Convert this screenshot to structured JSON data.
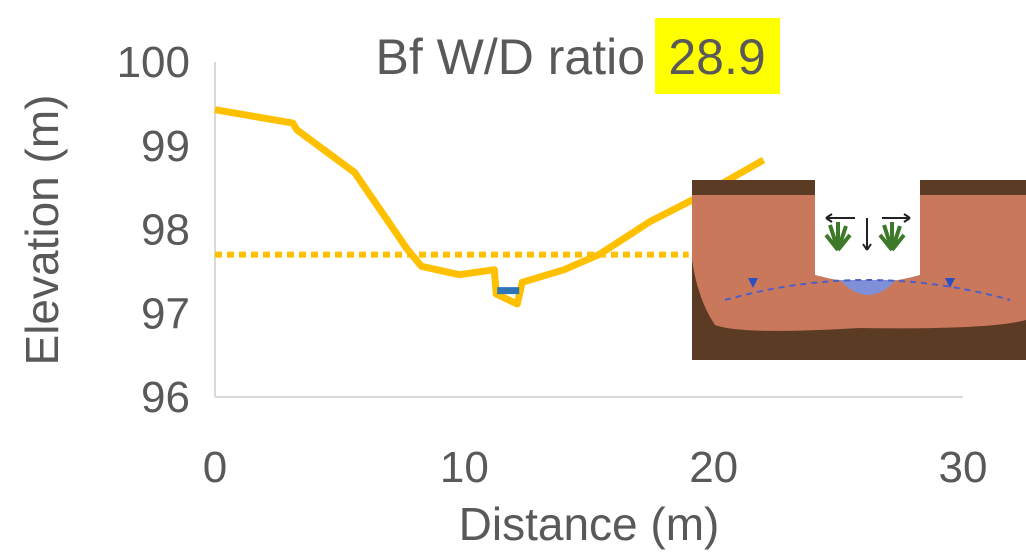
{
  "chart_data": {
    "type": "line",
    "title": "Bf W/D ratio",
    "ratio_value": 28.9,
    "x_label": "Distance (m)",
    "y_label": "Elevation (m)",
    "xlim": [
      0,
      30
    ],
    "xticks": [
      0,
      10,
      20,
      30
    ],
    "ylim": [
      96,
      100
    ],
    "yticks": [
      96,
      97,
      98,
      99,
      100
    ],
    "grid": false,
    "series": [
      {
        "color": "#ffc000",
        "dash": false,
        "x": [
          0,
          3.12,
          3.28,
          5.6,
          7.72,
          8.28,
          9.8,
          11.2,
          11.28,
          12.12,
          12.32,
          14,
          15.4,
          17.48,
          19.4,
          22
        ],
        "values": [
          99.43,
          99.27,
          99.19,
          98.68,
          97.76,
          97.56,
          97.46,
          97.52,
          97.23,
          97.11,
          97.37,
          97.52,
          97.7,
          98.1,
          98.39,
          98.83
        ]
      },
      {
        "color": "#ffc000",
        "dash": true,
        "x": [
          0,
          19
        ],
        "values": [
          97.7,
          97.7
        ]
      },
      {
        "color": "#2e75b6",
        "dash": false,
        "x": [
          11.32,
          12.2
        ],
        "values": [
          97.27,
          97.27
        ]
      }
    ]
  }
}
